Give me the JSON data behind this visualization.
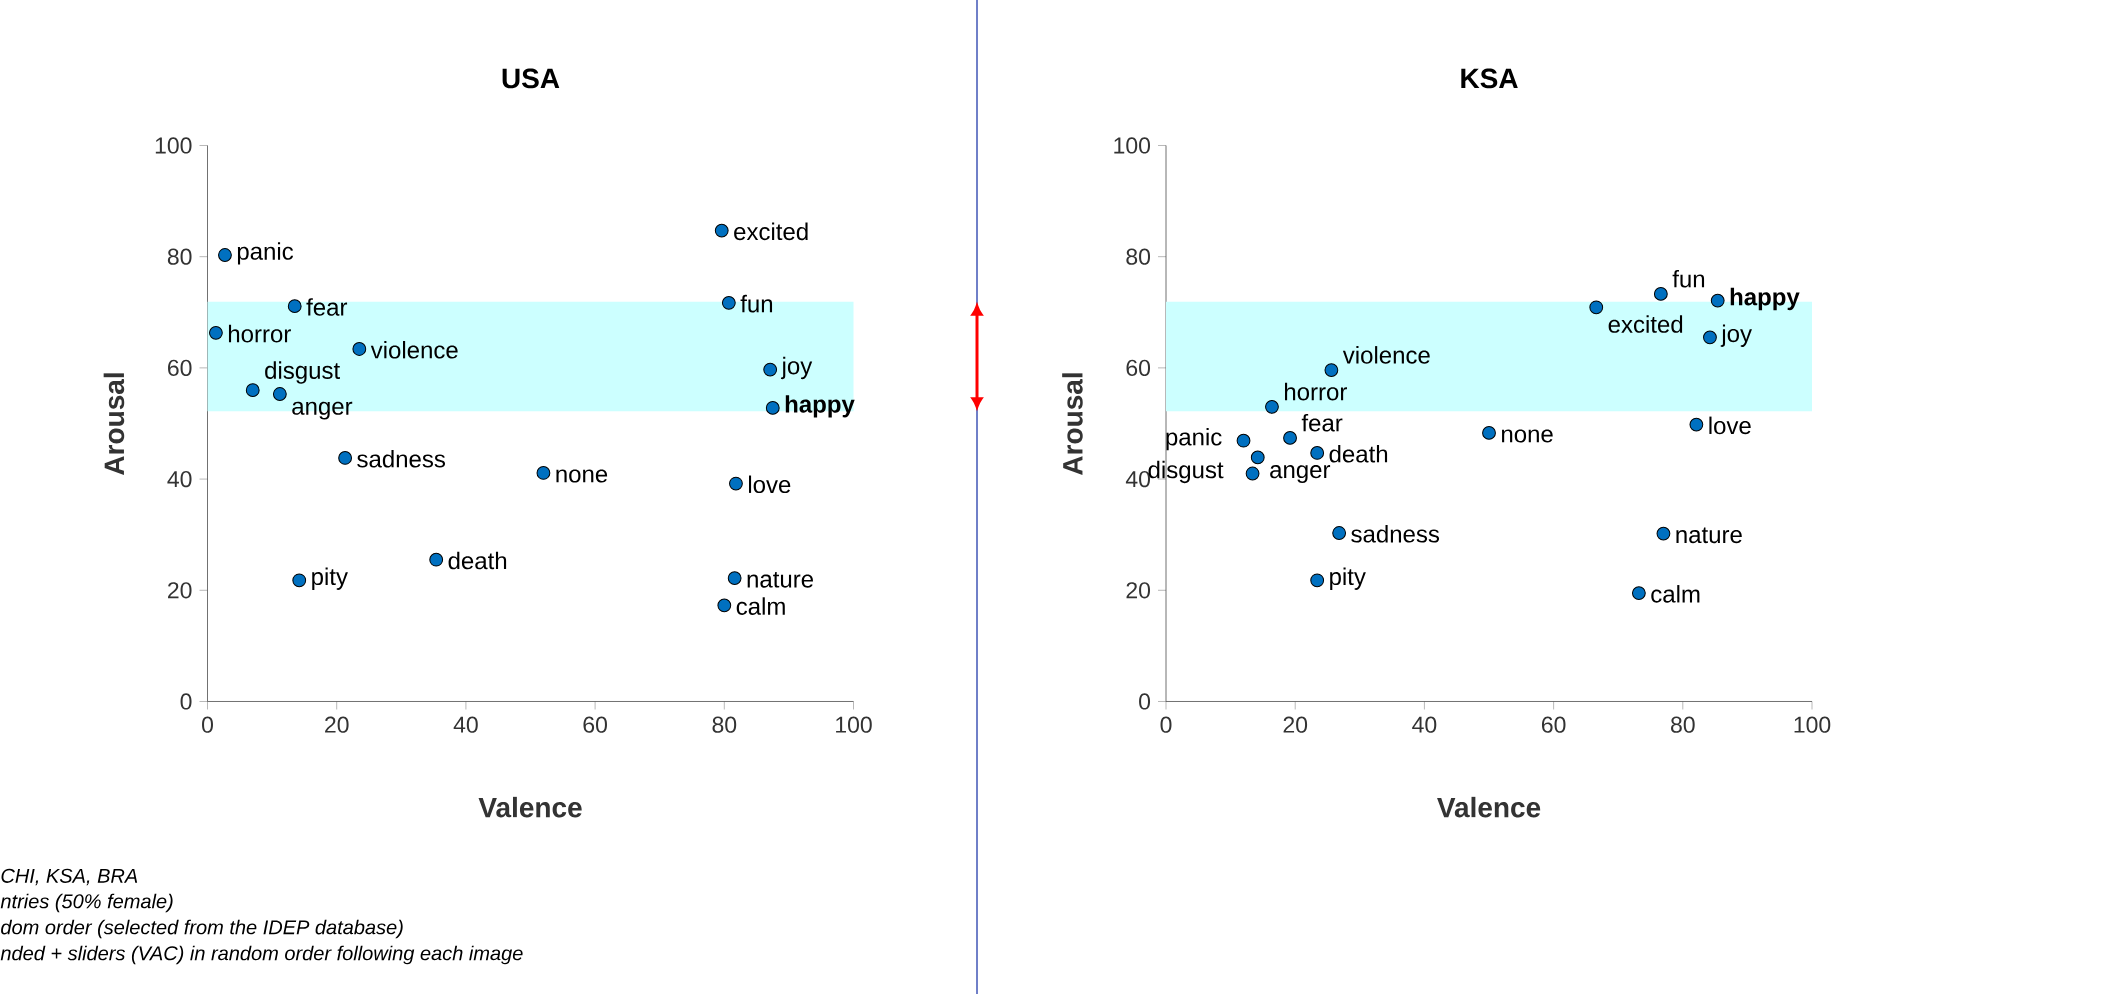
{
  "chart_data": [
    {
      "type": "scatter",
      "title": "USA",
      "xlabel": "Valence",
      "ylabel": "Arousal",
      "xlim": [
        0,
        100
      ],
      "ylim": [
        0,
        100
      ],
      "xticks": [
        0,
        20,
        40,
        60,
        80,
        100
      ],
      "yticks": [
        0,
        20,
        40,
        60,
        80,
        100
      ],
      "marker": "circle",
      "bands": [
        {
          "axis": "y",
          "from": 52.2,
          "to": 71.9,
          "color": "#ccffff"
        }
      ],
      "series": [
        {
          "name": "panic",
          "color": "#0070c0",
          "x": [
            2.7
          ],
          "values": [
            80.3
          ]
        },
        {
          "name": "fear",
          "color": "#0070c0",
          "x": [
            13.5
          ],
          "values": [
            71.1
          ]
        },
        {
          "name": "horror",
          "color": "#0070c0",
          "x": [
            1.3
          ],
          "values": [
            66.3
          ]
        },
        {
          "name": "violence",
          "color": "#0070c0",
          "x": [
            23.5
          ],
          "values": [
            63.4
          ]
        },
        {
          "name": "disgust",
          "color": "#0070c0",
          "x": [
            7.0
          ],
          "values": [
            56.0
          ]
        },
        {
          "name": "anger",
          "color": "#0070c0",
          "x": [
            11.2
          ],
          "values": [
            55.3
          ]
        },
        {
          "name": "sadness",
          "color": "#0070c0",
          "x": [
            21.3
          ],
          "values": [
            43.8
          ]
        },
        {
          "name": "none",
          "color": "#0070c0",
          "x": [
            52.0
          ],
          "values": [
            41.1
          ]
        },
        {
          "name": "excited",
          "color": "#0070c0",
          "x": [
            79.6
          ],
          "values": [
            84.7
          ]
        },
        {
          "name": "fun",
          "color": "#0070c0",
          "x": [
            80.7
          ],
          "values": [
            71.7
          ]
        },
        {
          "name": "joy",
          "color": "#0070c0",
          "x": [
            87.1
          ],
          "values": [
            59.7
          ]
        },
        {
          "name": "**happy**",
          "color": "#0070c0",
          "x": [
            87.5
          ],
          "values": [
            52.8
          ]
        },
        {
          "name": "love",
          "color": "#0070c0",
          "x": [
            81.8
          ],
          "values": [
            39.2
          ]
        },
        {
          "name": "pity",
          "color": "#0070c0",
          "x": [
            14.2
          ],
          "values": [
            21.8
          ]
        },
        {
          "name": "death",
          "color": "#0070c0",
          "x": [
            35.4
          ],
          "values": [
            25.5
          ]
        },
        {
          "name": "nature",
          "color": "#0070c0",
          "x": [
            81.6
          ],
          "values": [
            22.2
          ]
        },
        {
          "name": "calm",
          "color": "#0070c0",
          "x": [
            80.0
          ],
          "values": [
            17.3
          ]
        }
      ],
      "annotations": [
        "CHI, KSA, BRA",
        "ntries (50% female)",
        "dom order (selected from the IDEP database)",
        "nded + sliders (VAC) in random order following each image"
      ]
    },
    {
      "type": "scatter",
      "title": "KSA",
      "xlabel": "Valence",
      "ylabel": "Arousal",
      "xlim": [
        0,
        100
      ],
      "ylim": [
        0,
        100
      ],
      "xticks": [
        0,
        20,
        40,
        60,
        80,
        100
      ],
      "yticks": [
        0,
        20,
        40,
        60,
        80,
        100
      ],
      "marker": "circle",
      "bands": [
        {
          "axis": "y",
          "from": 52.2,
          "to": 71.9,
          "color": "#ccffff"
        }
      ],
      "series": [
        {
          "name": "panic",
          "color": "#0070c0",
          "x": [
            12.0
          ],
          "values": [
            46.9
          ]
        },
        {
          "name": "fear",
          "color": "#0070c0",
          "x": [
            19.2
          ],
          "values": [
            47.4
          ]
        },
        {
          "name": "anger",
          "color": "#0070c0",
          "x": [
            14.2
          ],
          "values": [
            43.9
          ]
        },
        {
          "name": "death",
          "color": "#0070c0",
          "x": [
            23.4
          ],
          "values": [
            44.7
          ]
        },
        {
          "name": "disgust",
          "color": "#0070c0",
          "x": [
            13.4
          ],
          "values": [
            41.0
          ]
        },
        {
          "name": "horror",
          "color": "#0070c0",
          "x": [
            16.4
          ],
          "values": [
            53.0
          ]
        },
        {
          "name": "violence",
          "color": "#0070c0",
          "x": [
            25.6
          ],
          "values": [
            59.6
          ]
        },
        {
          "name": "sadness",
          "color": "#0070c0",
          "x": [
            26.8
          ],
          "values": [
            30.3
          ]
        },
        {
          "name": "pity",
          "color": "#0070c0",
          "x": [
            23.4
          ],
          "values": [
            21.8
          ]
        },
        {
          "name": "none",
          "color": "#0070c0",
          "x": [
            50.0
          ],
          "values": [
            48.3
          ]
        },
        {
          "name": "excited",
          "color": "#0070c0",
          "x": [
            66.6
          ],
          "values": [
            70.9
          ]
        },
        {
          "name": "fun",
          "color": "#0070c0",
          "x": [
            76.6
          ],
          "values": [
            73.3
          ]
        },
        {
          "name": "**happy**",
          "color": "#0070c0",
          "x": [
            85.4
          ],
          "values": [
            72.1
          ]
        },
        {
          "name": "joy",
          "color": "#0070c0",
          "x": [
            84.2
          ],
          "values": [
            65.5
          ]
        },
        {
          "name": "love",
          "color": "#0070c0",
          "x": [
            82.1
          ],
          "values": [
            49.8
          ]
        },
        {
          "name": "nature",
          "color": "#0070c0",
          "x": [
            77.0
          ],
          "values": [
            30.2
          ]
        },
        {
          "name": "calm",
          "color": "#0070c0",
          "x": [
            73.2
          ],
          "values": [
            19.5
          ]
        }
      ]
    }
  ]
}
